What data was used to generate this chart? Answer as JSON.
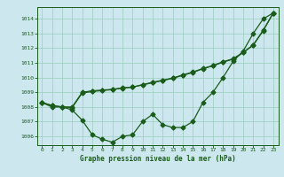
{
  "title": "Graphe pression niveau de la mer (hPa)",
  "bg_color": "#cce8ee",
  "line_color": "#1a5c1a",
  "grid_color": "#99ccbb",
  "xlim": [
    -0.5,
    23.5
  ],
  "ylim": [
    1005.4,
    1014.8
  ],
  "yticks": [
    1006,
    1007,
    1008,
    1009,
    1010,
    1011,
    1012,
    1013,
    1014
  ],
  "xticks": [
    0,
    1,
    2,
    3,
    4,
    5,
    6,
    7,
    8,
    9,
    10,
    11,
    12,
    13,
    14,
    15,
    16,
    17,
    18,
    19,
    20,
    21,
    22,
    23
  ],
  "series1_y": [
    1008.3,
    1008.0,
    1008.0,
    1007.8,
    1007.1,
    1006.1,
    1005.8,
    1005.6,
    1006.0,
    1006.1,
    1007.0,
    1007.5,
    1006.8,
    1006.6,
    1006.6,
    1007.0,
    1008.3,
    1009.0,
    1010.0,
    1011.1,
    1011.8,
    1013.0,
    1014.0,
    1014.4
  ],
  "series2_y": [
    1008.3,
    1008.1,
    1008.0,
    1008.0,
    1009.0,
    1009.1,
    1009.15,
    1009.2,
    1009.3,
    1009.35,
    1009.5,
    1009.65,
    1009.8,
    1009.95,
    1010.15,
    1010.35,
    1010.6,
    1010.8,
    1011.05,
    1011.25,
    1011.7,
    1012.2,
    1013.2,
    1014.4
  ],
  "series3_y": [
    1008.3,
    1008.1,
    1008.0,
    1007.95,
    1008.95,
    1009.05,
    1009.12,
    1009.18,
    1009.28,
    1009.35,
    1009.52,
    1009.68,
    1009.82,
    1009.97,
    1010.18,
    1010.38,
    1010.62,
    1010.82,
    1011.08,
    1011.28,
    1011.72,
    1012.22,
    1013.22,
    1014.4
  ]
}
